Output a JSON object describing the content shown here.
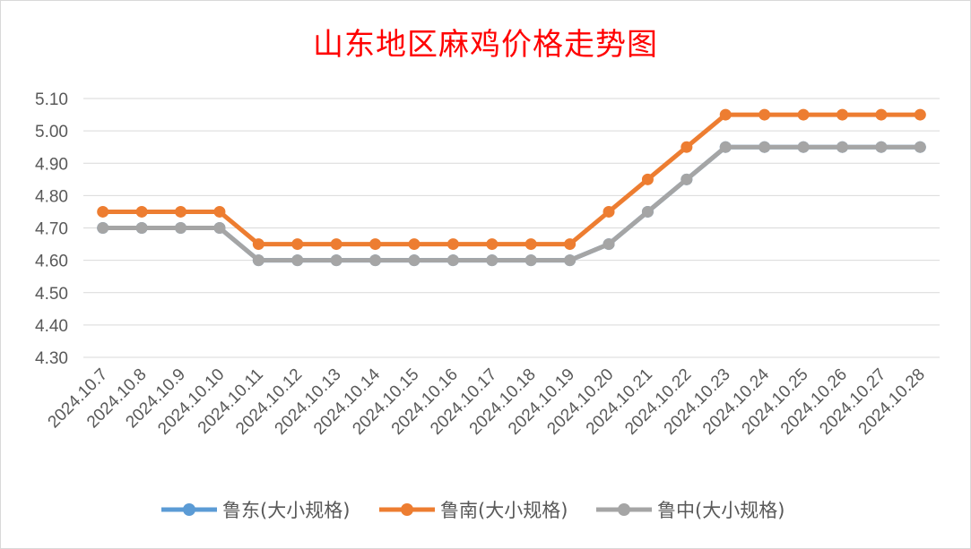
{
  "chart_data": {
    "type": "line",
    "title": "山东地区麻鸡价格走势图",
    "categories": [
      "2024.10.7",
      "2024.10.8",
      "2024.10.9",
      "2024.10.10",
      "2024.10.11",
      "2024.10.12",
      "2024.10.13",
      "2024.10.14",
      "2024.10.15",
      "2024.10.16",
      "2024.10.17",
      "2024.10.18",
      "2024.10.19",
      "2024.10.20",
      "2024.10.21",
      "2024.10.22",
      "2024.10.23",
      "2024.10.24",
      "2024.10.25",
      "2024.10.26",
      "2024.10.27",
      "2024.10.28"
    ],
    "ylim": [
      4.3,
      5.1
    ],
    "yticks": [
      "4.30",
      "4.40",
      "4.50",
      "4.60",
      "4.70",
      "4.80",
      "4.90",
      "5.00",
      "5.10"
    ],
    "grid": true,
    "legend_position": "bottom",
    "series": [
      {
        "name": "鲁东(大小规格)",
        "color": "#5b9bd5",
        "values": [
          4.7,
          4.7,
          4.7,
          4.7,
          4.6,
          4.6,
          4.6,
          4.6,
          4.6,
          4.6,
          4.6,
          4.6,
          4.6,
          4.65,
          4.75,
          4.85,
          4.95,
          4.95,
          4.95,
          4.95,
          4.95,
          4.95
        ]
      },
      {
        "name": "鲁南(大小规格)",
        "color": "#ed7d31",
        "values": [
          4.75,
          4.75,
          4.75,
          4.75,
          4.65,
          4.65,
          4.65,
          4.65,
          4.65,
          4.65,
          4.65,
          4.65,
          4.65,
          4.75,
          4.85,
          4.95,
          5.05,
          5.05,
          5.05,
          5.05,
          5.05,
          5.05
        ]
      },
      {
        "name": "鲁中(大小规格)",
        "color": "#a5a5a5",
        "values": [
          4.7,
          4.7,
          4.7,
          4.7,
          4.6,
          4.6,
          4.6,
          4.6,
          4.6,
          4.6,
          4.6,
          4.6,
          4.6,
          4.65,
          4.75,
          4.85,
          4.95,
          4.95,
          4.95,
          4.95,
          4.95,
          4.95
        ]
      }
    ]
  }
}
